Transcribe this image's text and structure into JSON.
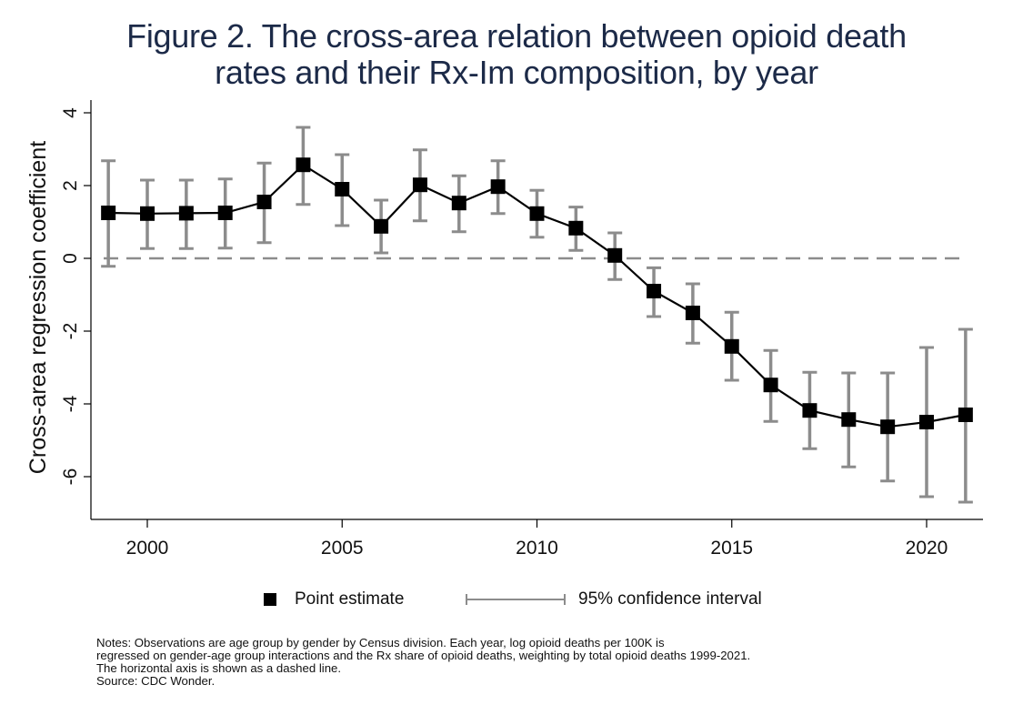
{
  "title_lines": [
    "Figure 2.  The cross-area relation between opioid death",
    "rates and their Rx-Im composition, by year"
  ],
  "colors": {
    "title": "#1c2a48",
    "point": "#000000",
    "ci": "#8c8c8c",
    "zero_line": "#8c8c8c",
    "axis": "#000000"
  },
  "chart_data": {
    "type": "line",
    "title": "Figure 2.  The cross-area relation between opioid death rates and their Rx-Im composition, by year",
    "xlabel": "",
    "ylabel": "Cross-area regression coefficient",
    "xlim": [
      1998.1,
      2021.6
    ],
    "ylim": [
      -7.2,
      4.2
    ],
    "xticks": [
      2000,
      2005,
      2010,
      2015,
      2020
    ],
    "xtick_labels": [
      "2000",
      "2005",
      "2010",
      "2015",
      "2020"
    ],
    "yticks": [
      4,
      2,
      0,
      -2,
      -4,
      -6
    ],
    "ytick_labels": [
      "4",
      "2",
      "0",
      "-2",
      "-4",
      "-6"
    ],
    "reference_line": {
      "y": 0,
      "style": "dashed"
    },
    "grid": false,
    "legend_position": "bottom",
    "x": [
      1999,
      2000,
      2001,
      2002,
      2003,
      2004,
      2005,
      2006,
      2007,
      2008,
      2009,
      2010,
      2011,
      2012,
      2013,
      2014,
      2015,
      2016,
      2017,
      2018,
      2019,
      2020,
      2021
    ],
    "series": [
      {
        "name": "Point estimate",
        "values": [
          1.25,
          1.23,
          1.24,
          1.25,
          1.55,
          2.57,
          1.9,
          0.88,
          2.02,
          1.52,
          1.97,
          1.23,
          0.83,
          0.08,
          -0.9,
          -1.5,
          -2.42,
          -3.48,
          -4.18,
          -4.43,
          -4.63,
          -4.5,
          -4.3
        ]
      },
      {
        "name": "95% confidence interval upper",
        "values": [
          2.68,
          2.15,
          2.15,
          2.18,
          2.62,
          3.6,
          2.85,
          1.6,
          2.98,
          2.27,
          2.68,
          1.87,
          1.41,
          0.7,
          -0.26,
          -0.7,
          -1.48,
          -2.53,
          -3.13,
          -3.15,
          -3.15,
          -2.45,
          -1.95
        ]
      },
      {
        "name": "95% confidence interval lower",
        "values": [
          -0.22,
          0.27,
          0.27,
          0.28,
          0.43,
          1.48,
          0.9,
          0.15,
          1.03,
          0.73,
          1.23,
          0.58,
          0.22,
          -0.58,
          -1.6,
          -2.33,
          -3.35,
          -4.48,
          -5.23,
          -5.73,
          -6.12,
          -6.55,
          -6.7
        ]
      }
    ],
    "legend": [
      "Point estimate",
      "95% confidence interval"
    ]
  },
  "legend": {
    "point_label": "Point estimate",
    "ci_label": "95% confidence interval"
  },
  "notes": [
    "Notes: Observations are age group by gender by Census division.  Each year, log opioid deaths per 100K is",
    "regressed on gender-age group interactions and the Rx share of opioid deaths, weighting by total opioid deaths 1999-2021.",
    "The horizontal axis is shown as a dashed line.",
    "Source: CDC Wonder."
  ]
}
